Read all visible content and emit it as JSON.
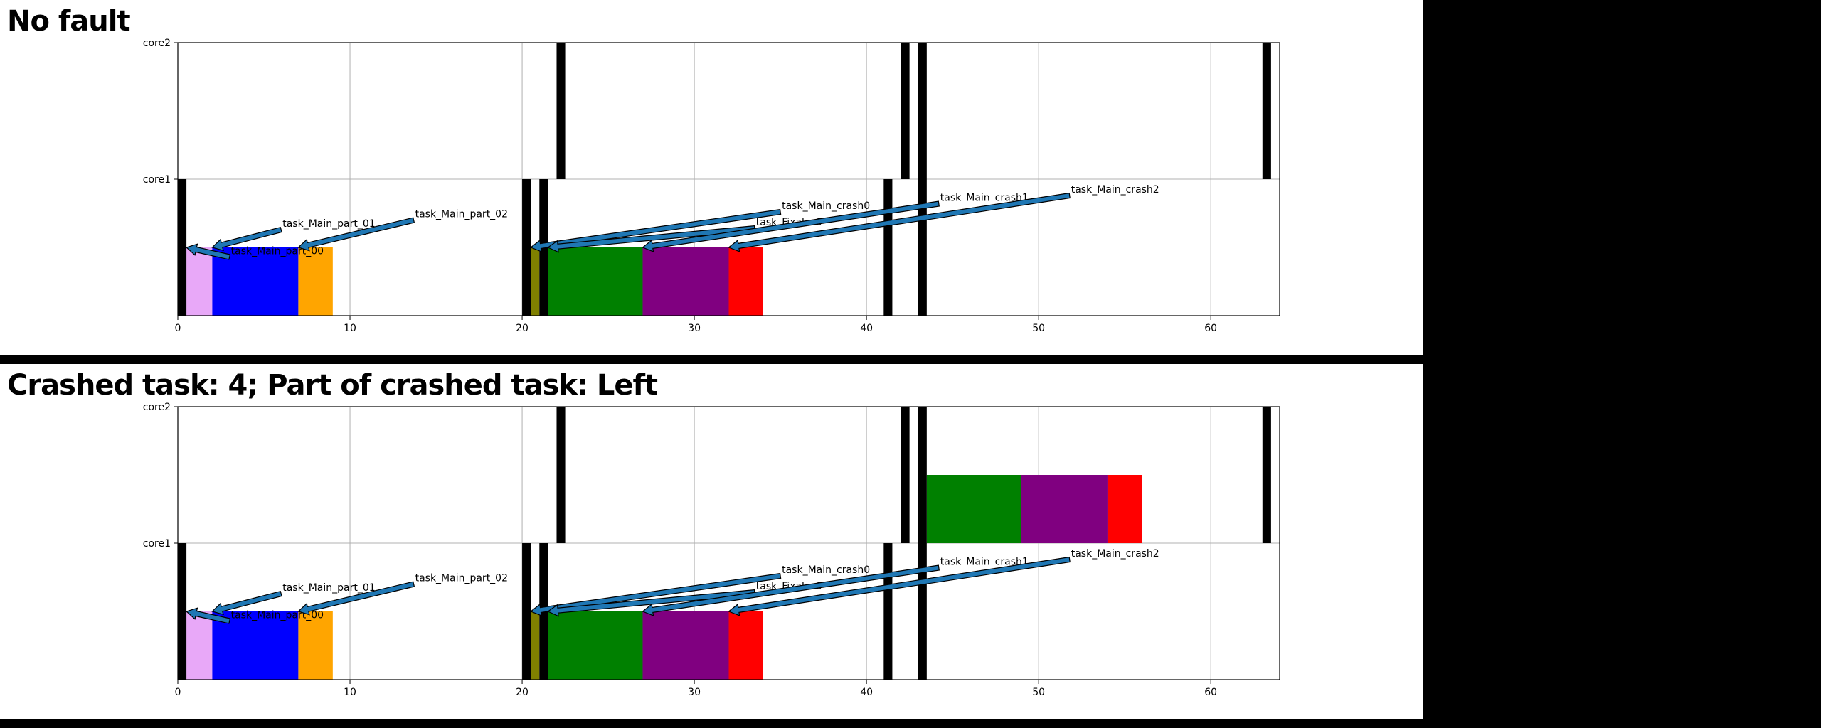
{
  "chart_data": [
    {
      "type": "gantt",
      "title": "No fault",
      "xlim": [
        0,
        64
      ],
      "xticks": [
        0,
        10,
        20,
        30,
        40,
        50,
        60
      ],
      "lanes": [
        "core2",
        "core1"
      ],
      "grid": true,
      "markers": [
        {
          "lane": "core1",
          "start": 0.0,
          "end": 0.5
        },
        {
          "lane": "core1",
          "start": 20.0,
          "end": 20.5
        },
        {
          "lane": "core1",
          "start": 21.0,
          "end": 21.5
        },
        {
          "lane": "core1",
          "start": 41.0,
          "end": 41.5
        },
        {
          "lane": "core1",
          "start": 43.0,
          "end": 43.5
        },
        {
          "lane": "core2",
          "start": 22.0,
          "end": 22.5
        },
        {
          "lane": "core2",
          "start": 42.0,
          "end": 42.5
        },
        {
          "lane": "core2",
          "start": 43.0,
          "end": 43.5
        },
        {
          "lane": "core2",
          "start": 63.0,
          "end": 63.5
        }
      ],
      "tasks": [
        {
          "lane": "core1",
          "start": 0.5,
          "end": 2.0,
          "color": "#e8a8f8",
          "label": "task_Main_part_00",
          "label_x": 3.0,
          "label_y": 0.43
        },
        {
          "lane": "core1",
          "start": 2.0,
          "end": 7.0,
          "color": "#0000ff",
          "label": "task_Main_part_01",
          "label_x": 6.0,
          "label_y": 0.63
        },
        {
          "lane": "core1",
          "start": 7.0,
          "end": 9.0,
          "color": "#ffa500",
          "label": "task_Main_part_02",
          "label_x": 13.7,
          "label_y": 0.7
        },
        {
          "lane": "core1",
          "start": 20.5,
          "end": 21.0,
          "color": "#808000",
          "label": "task_Main_crash0",
          "label_x": 35.0,
          "label_y": 0.76
        },
        {
          "lane": "core1",
          "start": 21.5,
          "end": 27.0,
          "color": "#008000",
          "label": "task_Fixator0",
          "label_x": 33.5,
          "label_y": 0.64
        },
        {
          "lane": "core1",
          "start": 27.0,
          "end": 32.0,
          "color": "#800080",
          "label": "task_Main_crash1",
          "label_x": 44.2,
          "label_y": 0.82
        },
        {
          "lane": "core1",
          "start": 32.0,
          "end": 34.0,
          "color": "#ff0000",
          "label": "task_Main_crash2",
          "label_x": 51.8,
          "label_y": 0.88
        }
      ]
    },
    {
      "type": "gantt",
      "title": "Crashed task: 4; Part of crashed task: Left",
      "xlim": [
        0,
        64
      ],
      "xticks": [
        0,
        10,
        20,
        30,
        40,
        50,
        60
      ],
      "lanes": [
        "core2",
        "core1"
      ],
      "grid": true,
      "markers": [
        {
          "lane": "core1",
          "start": 0.0,
          "end": 0.5
        },
        {
          "lane": "core1",
          "start": 20.0,
          "end": 20.5
        },
        {
          "lane": "core1",
          "start": 21.0,
          "end": 21.5
        },
        {
          "lane": "core1",
          "start": 41.0,
          "end": 41.5
        },
        {
          "lane": "core1",
          "start": 43.0,
          "end": 43.5
        },
        {
          "lane": "core2",
          "start": 22.0,
          "end": 22.5
        },
        {
          "lane": "core2",
          "start": 42.0,
          "end": 42.5
        },
        {
          "lane": "core2",
          "start": 43.0,
          "end": 43.5
        },
        {
          "lane": "core2",
          "start": 63.0,
          "end": 63.5
        }
      ],
      "tasks": [
        {
          "lane": "core1",
          "start": 0.5,
          "end": 2.0,
          "color": "#e8a8f8",
          "label": "task_Main_part_00",
          "label_x": 3.0,
          "label_y": 0.43
        },
        {
          "lane": "core1",
          "start": 2.0,
          "end": 7.0,
          "color": "#0000ff",
          "label": "task_Main_part_01",
          "label_x": 6.0,
          "label_y": 0.63
        },
        {
          "lane": "core1",
          "start": 7.0,
          "end": 9.0,
          "color": "#ffa500",
          "label": "task_Main_part_02",
          "label_x": 13.7,
          "label_y": 0.7
        },
        {
          "lane": "core1",
          "start": 20.5,
          "end": 21.0,
          "color": "#808000",
          "label": "task_Main_crash0",
          "label_x": 35.0,
          "label_y": 0.76
        },
        {
          "lane": "core1",
          "start": 21.5,
          "end": 27.0,
          "color": "#008000",
          "label": "task_Fixator0",
          "label_x": 33.5,
          "label_y": 0.64
        },
        {
          "lane": "core1",
          "start": 27.0,
          "end": 32.0,
          "color": "#800080",
          "label": "task_Main_crash1",
          "label_x": 44.2,
          "label_y": 0.82
        },
        {
          "lane": "core1",
          "start": 32.0,
          "end": 34.0,
          "color": "#ff0000",
          "label": "task_Main_crash2",
          "label_x": 51.8,
          "label_y": 0.88
        },
        {
          "lane": "core2",
          "start": 43.5,
          "end": 49.0,
          "color": "#008000"
        },
        {
          "lane": "core2",
          "start": 49.0,
          "end": 54.0,
          "color": "#800080"
        },
        {
          "lane": "core2",
          "start": 54.0,
          "end": 56.0,
          "color": "#ff0000"
        }
      ]
    }
  ]
}
